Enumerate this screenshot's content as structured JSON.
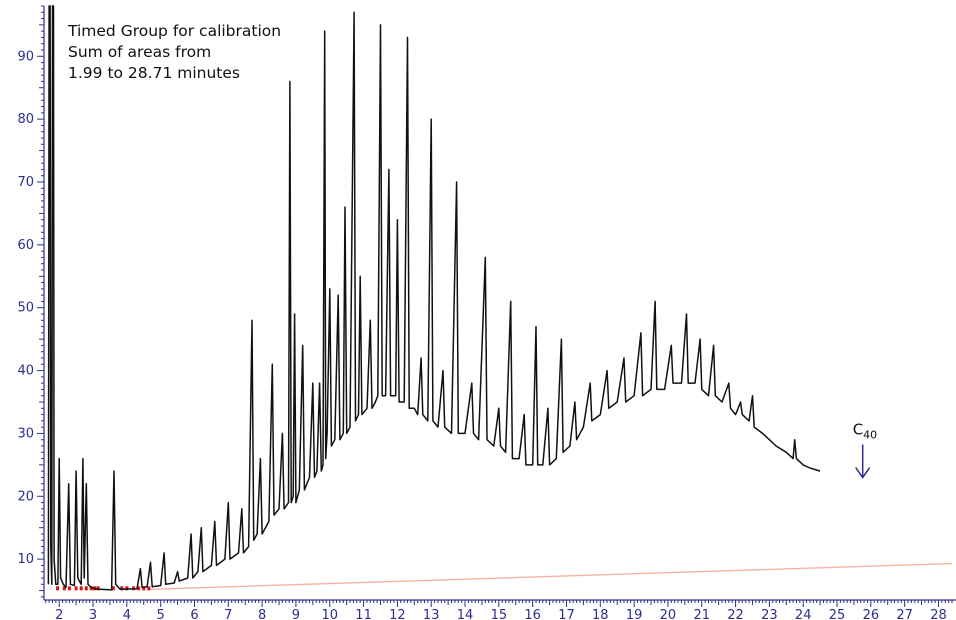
{
  "chart_data": {
    "type": "line",
    "title": "",
    "xlabel": "",
    "ylabel": "",
    "xlim": [
      1.55,
      28.4
    ],
    "ylim": [
      3.5,
      98
    ],
    "x_ticks": [
      2,
      3,
      4,
      5,
      6,
      7,
      8,
      9,
      10,
      11,
      12,
      13,
      14,
      15,
      16,
      17,
      18,
      19,
      20,
      21,
      22,
      23,
      24,
      25,
      26,
      27,
      28
    ],
    "y_ticks": [
      10,
      20,
      30,
      40,
      50,
      60,
      70,
      80,
      90
    ],
    "annotation_lines": [
      "Timed Group for calibration",
      "Sum of areas from",
      "1.99 to 28.71 minutes"
    ],
    "marker_label": {
      "text": "C",
      "subscript": "40",
      "x": 25.7,
      "y": 26
    },
    "colors": {
      "trace": "#111111",
      "baseline": "#f3b4a0",
      "axis": "#2e2e8f",
      "marker": "#2e2e8f",
      "integration_marks": "#dd1111"
    },
    "baseline": {
      "x": [
        4.7,
        28.4
      ],
      "y": [
        5.2,
        9.3
      ]
    },
    "series": [
      {
        "points": [
          [
            1.68,
            6
          ],
          [
            1.7,
            98
          ],
          [
            1.73,
            98
          ],
          [
            1.75,
            12
          ],
          [
            1.78,
            6
          ],
          [
            1.8,
            98
          ],
          [
            1.83,
            98
          ],
          [
            1.85,
            10
          ],
          [
            1.9,
            6
          ],
          [
            1.96,
            6
          ],
          [
            2.0,
            26
          ],
          [
            2.04,
            7
          ],
          [
            2.12,
            6
          ],
          [
            2.2,
            5.5
          ],
          [
            2.28,
            22
          ],
          [
            2.33,
            6
          ],
          [
            2.45,
            5.8
          ],
          [
            2.5,
            24
          ],
          [
            2.55,
            7
          ],
          [
            2.65,
            6
          ],
          [
            2.7,
            26
          ],
          [
            2.74,
            7
          ],
          [
            2.8,
            22
          ],
          [
            2.85,
            6
          ],
          [
            2.95,
            5.5
          ],
          [
            3.05,
            5.3
          ],
          [
            3.2,
            5.2
          ],
          [
            3.55,
            5.1
          ],
          [
            3.62,
            24
          ],
          [
            3.67,
            6
          ],
          [
            3.8,
            5.2
          ],
          [
            4.3,
            5.3
          ],
          [
            4.4,
            8.5
          ],
          [
            4.45,
            5.5
          ],
          [
            4.6,
            5.6
          ],
          [
            4.7,
            9.5
          ],
          [
            4.75,
            5.6
          ],
          [
            5.0,
            5.8
          ],
          [
            5.1,
            11
          ],
          [
            5.15,
            6
          ],
          [
            5.4,
            6.2
          ],
          [
            5.5,
            8
          ],
          [
            5.55,
            6.5
          ],
          [
            5.8,
            7
          ],
          [
            5.9,
            14
          ],
          [
            5.95,
            7
          ],
          [
            6.1,
            8
          ],
          [
            6.2,
            15
          ],
          [
            6.25,
            8
          ],
          [
            6.5,
            9
          ],
          [
            6.6,
            16
          ],
          [
            6.65,
            9
          ],
          [
            6.9,
            10
          ],
          [
            7.0,
            19
          ],
          [
            7.05,
            10
          ],
          [
            7.3,
            11
          ],
          [
            7.4,
            18
          ],
          [
            7.45,
            11
          ],
          [
            7.6,
            12
          ],
          [
            7.7,
            48
          ],
          [
            7.75,
            13
          ],
          [
            7.85,
            14
          ],
          [
            7.95,
            26
          ],
          [
            8.0,
            14
          ],
          [
            8.2,
            16
          ],
          [
            8.3,
            41
          ],
          [
            8.35,
            17
          ],
          [
            8.5,
            18
          ],
          [
            8.6,
            30
          ],
          [
            8.65,
            18
          ],
          [
            8.78,
            19
          ],
          [
            8.82,
            86
          ],
          [
            8.86,
            19
          ],
          [
            8.92,
            20
          ],
          [
            8.96,
            49
          ],
          [
            9.0,
            19
          ],
          [
            9.1,
            21
          ],
          [
            9.2,
            44
          ],
          [
            9.25,
            21
          ],
          [
            9.4,
            23
          ],
          [
            9.5,
            38
          ],
          [
            9.55,
            23
          ],
          [
            9.62,
            24
          ],
          [
            9.7,
            38
          ],
          [
            9.75,
            24
          ],
          [
            9.8,
            25
          ],
          [
            9.85,
            94
          ],
          [
            9.88,
            26
          ],
          [
            9.92,
            30
          ],
          [
            10.0,
            53
          ],
          [
            10.05,
            28
          ],
          [
            10.15,
            29
          ],
          [
            10.25,
            52
          ],
          [
            10.3,
            29
          ],
          [
            10.4,
            30
          ],
          [
            10.45,
            66
          ],
          [
            10.5,
            30
          ],
          [
            10.6,
            31
          ],
          [
            10.72,
            97
          ],
          [
            10.76,
            32
          ],
          [
            10.85,
            33
          ],
          [
            10.9,
            55
          ],
          [
            10.95,
            33
          ],
          [
            11.1,
            34
          ],
          [
            11.2,
            48
          ],
          [
            11.25,
            34
          ],
          [
            11.35,
            35
          ],
          [
            11.42,
            36
          ],
          [
            11.5,
            95
          ],
          [
            11.55,
            36
          ],
          [
            11.65,
            36
          ],
          [
            11.75,
            72
          ],
          [
            11.8,
            36
          ],
          [
            11.95,
            36
          ],
          [
            12.0,
            64
          ],
          [
            12.05,
            35
          ],
          [
            12.2,
            35
          ],
          [
            12.3,
            93
          ],
          [
            12.35,
            34
          ],
          [
            12.5,
            34
          ],
          [
            12.6,
            33
          ],
          [
            12.7,
            42
          ],
          [
            12.75,
            33
          ],
          [
            12.9,
            32
          ],
          [
            13.0,
            80
          ],
          [
            13.05,
            32
          ],
          [
            13.2,
            31
          ],
          [
            13.35,
            40
          ],
          [
            13.4,
            31
          ],
          [
            13.6,
            30
          ],
          [
            13.75,
            70
          ],
          [
            13.8,
            30
          ],
          [
            14.0,
            30
          ],
          [
            14.2,
            38
          ],
          [
            14.25,
            30
          ],
          [
            14.4,
            29
          ],
          [
            14.6,
            58
          ],
          [
            14.65,
            29
          ],
          [
            14.85,
            28
          ],
          [
            15.0,
            34
          ],
          [
            15.05,
            28
          ],
          [
            15.2,
            27
          ],
          [
            15.35,
            51
          ],
          [
            15.4,
            26
          ],
          [
            15.6,
            26
          ],
          [
            15.75,
            33
          ],
          [
            15.8,
            25
          ],
          [
            16.0,
            25
          ],
          [
            16.1,
            47
          ],
          [
            16.15,
            25
          ],
          [
            16.3,
            25
          ],
          [
            16.45,
            34
          ],
          [
            16.5,
            25
          ],
          [
            16.7,
            26
          ],
          [
            16.85,
            45
          ],
          [
            16.9,
            27
          ],
          [
            17.1,
            28
          ],
          [
            17.25,
            35
          ],
          [
            17.3,
            29
          ],
          [
            17.5,
            31
          ],
          [
            17.7,
            38
          ],
          [
            17.75,
            32
          ],
          [
            18.0,
            33
          ],
          [
            18.2,
            40
          ],
          [
            18.25,
            34
          ],
          [
            18.5,
            35
          ],
          [
            18.7,
            42
          ],
          [
            18.75,
            35
          ],
          [
            19.0,
            36
          ],
          [
            19.2,
            46
          ],
          [
            19.25,
            36
          ],
          [
            19.5,
            37
          ],
          [
            19.62,
            51
          ],
          [
            19.67,
            37
          ],
          [
            19.9,
            37
          ],
          [
            20.1,
            44
          ],
          [
            20.15,
            38
          ],
          [
            20.4,
            38
          ],
          [
            20.55,
            49
          ],
          [
            20.6,
            38
          ],
          [
            20.8,
            38
          ],
          [
            20.95,
            45
          ],
          [
            21.0,
            37
          ],
          [
            21.2,
            36
          ],
          [
            21.35,
            44
          ],
          [
            21.4,
            36
          ],
          [
            21.6,
            35
          ],
          [
            21.8,
            38
          ],
          [
            21.85,
            34
          ],
          [
            22.0,
            33
          ],
          [
            22.15,
            35
          ],
          [
            22.2,
            33
          ],
          [
            22.4,
            32
          ],
          [
            22.5,
            36
          ],
          [
            22.55,
            31
          ],
          [
            22.8,
            30
          ],
          [
            23.0,
            29
          ],
          [
            23.2,
            28
          ],
          [
            23.5,
            27
          ],
          [
            23.7,
            26
          ],
          [
            23.75,
            29
          ],
          [
            23.8,
            26
          ],
          [
            24.0,
            25
          ],
          [
            24.2,
            24.5
          ],
          [
            24.5,
            24
          ]
        ]
      }
    ]
  }
}
